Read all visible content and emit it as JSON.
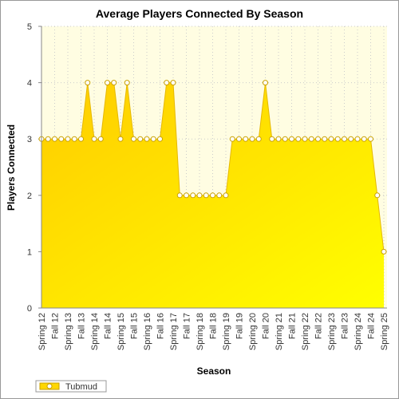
{
  "chart_data": {
    "type": "area",
    "title": "Average Players Connected By Season",
    "x_label": "Season",
    "y_label": "Players Connected",
    "categories": [
      "Spring 12",
      null,
      "Fall 12",
      null,
      "Spring 13",
      null,
      "Fall 13",
      null,
      "Spring 14",
      null,
      "Fall 14",
      null,
      "Spring 15",
      null,
      "Fall 15",
      null,
      "Spring 16",
      null,
      "Fall 16",
      null,
      "Spring 17",
      null,
      "Fall 17",
      null,
      "Spring 18",
      null,
      "Fall 18",
      null,
      "Spring 19",
      null,
      "Fall 19",
      null,
      "Spring 20",
      null,
      "Fall 20",
      null,
      "Spring 21",
      null,
      "Fall 21",
      null,
      "Spring 22",
      null,
      "Fall 22",
      null,
      "Spring 23",
      null,
      "Fall 23",
      null,
      "Spring 24",
      null,
      "Fall 24",
      null,
      "Spring 25"
    ],
    "series": [
      {
        "name": "Tubmud",
        "color": "#ffd700",
        "values": [
          3,
          3,
          3,
          3,
          3,
          3,
          3,
          4,
          3,
          3,
          4,
          4,
          3,
          4,
          3,
          3,
          3,
          3,
          3,
          4,
          4,
          2,
          2,
          2,
          2,
          2,
          2,
          2,
          2,
          3,
          3,
          3,
          3,
          3,
          4,
          3,
          3,
          3,
          3,
          3,
          3,
          3,
          3,
          3,
          3,
          3,
          3,
          3,
          3,
          3,
          3,
          2,
          1
        ]
      }
    ],
    "ylim": [
      0,
      5
    ],
    "yticks": [
      0,
      1,
      2,
      3,
      4,
      5
    ],
    "grid": true,
    "legend": "bottom-left"
  }
}
